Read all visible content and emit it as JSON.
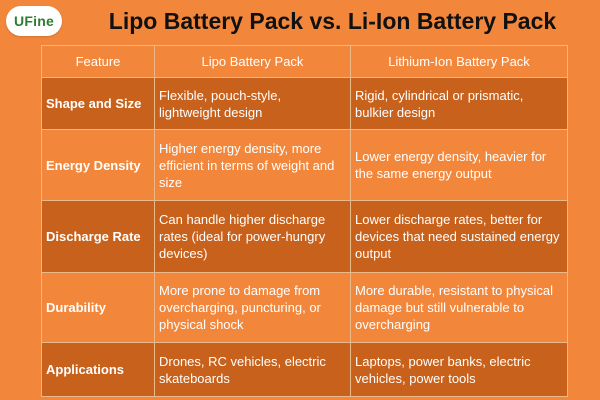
{
  "logo": {
    "text": "UFine"
  },
  "title": "Lipo Battery Pack vs. Li-Ion Battery Pack",
  "table": {
    "headers": [
      "Feature",
      "Lipo Battery Pack",
      "Lithium-Ion Battery Pack"
    ],
    "rows": [
      {
        "feature": "Shape and Size",
        "lipo": "Flexible, pouch-style, lightweight design",
        "liion": "Rigid, cylindrical or prismatic, bulkier design"
      },
      {
        "feature": "Energy Density",
        "lipo": "Higher energy density, more efficient in terms of weight and size",
        "liion": "Lower energy density, heavier for the same energy output"
      },
      {
        "feature": "Discharge Rate",
        "lipo": "Can handle higher discharge rates (ideal for power-hungry devices)",
        "liion": "Lower discharge rates, better for devices that need sustained energy output"
      },
      {
        "feature": "Durability",
        "lipo": "More prone to damage from overcharging, puncturing, or physical shock",
        "liion": "More durable, resistant to physical damage but still vulnerable to overcharging"
      },
      {
        "feature": "Applications",
        "lipo": "Drones, RC vehicles, electric skateboards",
        "liion": "Laptops, power banks, electric vehicles, power tools"
      }
    ]
  },
  "colors": {
    "background": "#F2873C",
    "dark_row": "#C8611B",
    "border": "#EAB889",
    "text": "#FFFFFF",
    "title": "#111111",
    "logo_text": "#2E7D32"
  }
}
